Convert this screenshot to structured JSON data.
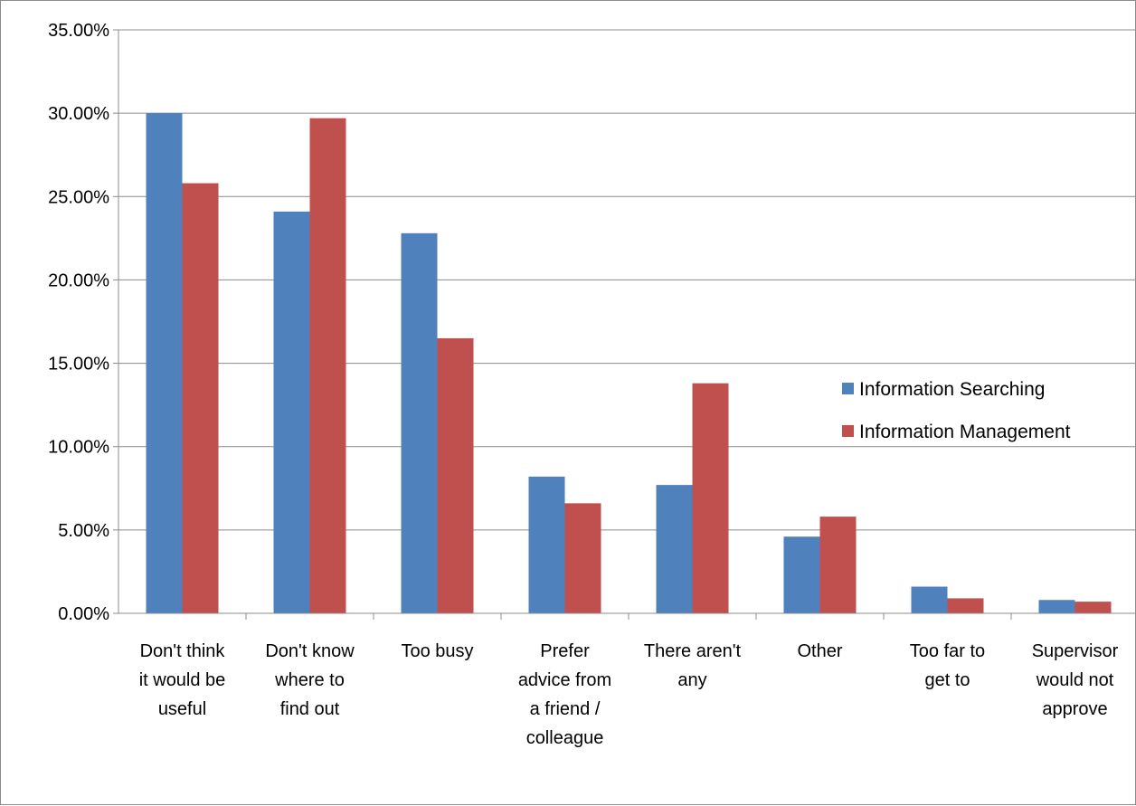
{
  "chart_data": {
    "type": "bar",
    "title": "",
    "xlabel": "",
    "ylabel": "",
    "ylim": [
      0,
      0.35
    ],
    "y_tick_step": 0.05,
    "y_tick_format": "percent_2dp",
    "grid": true,
    "legend_position": "right",
    "categories": [
      [
        "Don't think",
        "it would be",
        "useful"
      ],
      [
        "Don't know",
        "where to",
        "find out"
      ],
      [
        "Too busy"
      ],
      [
        "Prefer",
        "advice from",
        "a friend /",
        "colleague"
      ],
      [
        "There aren't",
        "any"
      ],
      [
        "Other"
      ],
      [
        "Too far to",
        "get to"
      ],
      [
        "Supervisor",
        "would not",
        "approve"
      ]
    ],
    "series": [
      {
        "name": "Information Searching",
        "color": "#4F81BD",
        "values": [
          0.3,
          0.241,
          0.228,
          0.082,
          0.077,
          0.046,
          0.016,
          0.008
        ]
      },
      {
        "name": "Information Management",
        "color": "#C0504D",
        "values": [
          0.258,
          0.297,
          0.165,
          0.066,
          0.138,
          0.058,
          0.009,
          0.007
        ]
      }
    ]
  }
}
